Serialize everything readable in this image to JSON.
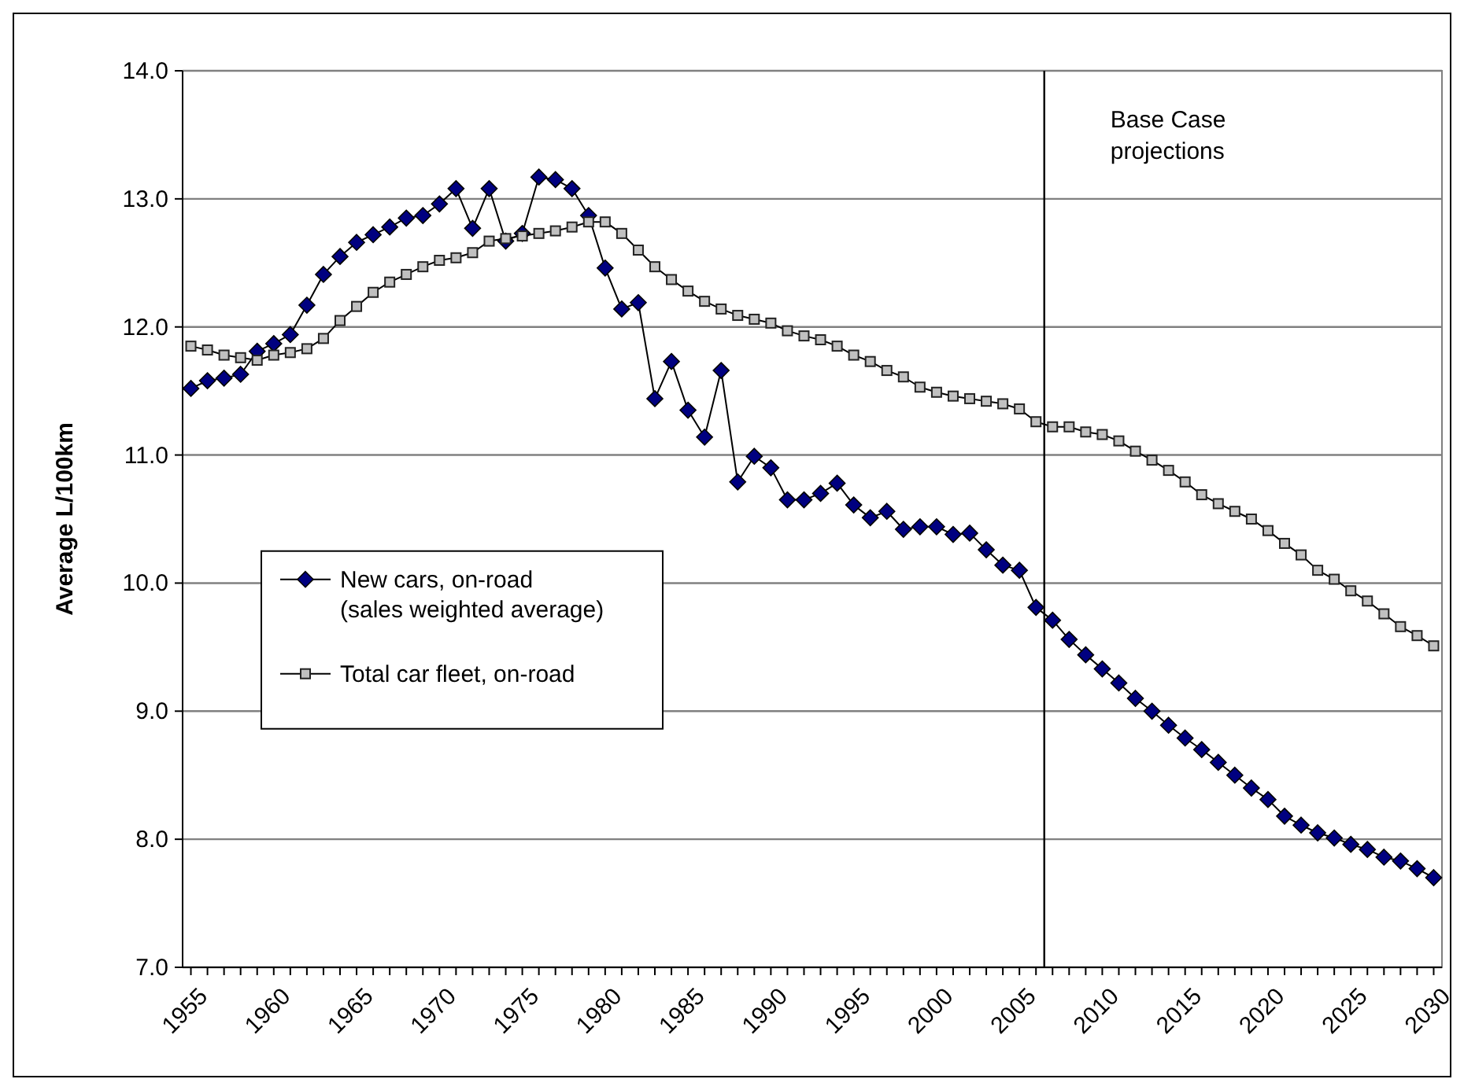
{
  "chart_data": {
    "type": "line",
    "ylabel": "Average L/100km",
    "x": [
      1955,
      1956,
      1957,
      1958,
      1959,
      1960,
      1961,
      1962,
      1963,
      1964,
      1965,
      1966,
      1967,
      1968,
      1969,
      1970,
      1971,
      1972,
      1973,
      1974,
      1975,
      1976,
      1977,
      1978,
      1979,
      1980,
      1981,
      1982,
      1983,
      1984,
      1985,
      1986,
      1987,
      1988,
      1989,
      1990,
      1991,
      1992,
      1993,
      1994,
      1995,
      1996,
      1997,
      1998,
      1999,
      2000,
      2001,
      2002,
      2003,
      2004,
      2005,
      2006,
      2007,
      2008,
      2009,
      2010,
      2011,
      2012,
      2013,
      2014,
      2015,
      2016,
      2017,
      2018,
      2019,
      2020,
      2021,
      2022,
      2023,
      2024,
      2025,
      2026,
      2027,
      2028,
      2029,
      2030
    ],
    "series": [
      {
        "name": "New cars, on-road (sales weighted average)",
        "color": "#000080",
        "marker": "diamond",
        "values": [
          11.52,
          11.58,
          11.6,
          11.63,
          11.81,
          11.87,
          11.94,
          12.17,
          12.41,
          12.55,
          12.66,
          12.72,
          12.78,
          12.85,
          12.87,
          12.96,
          13.08,
          12.77,
          13.08,
          12.67,
          12.73,
          13.17,
          13.15,
          13.08,
          12.87,
          12.46,
          12.14,
          12.19,
          11.44,
          11.73,
          11.35,
          11.14,
          11.66,
          10.79,
          10.99,
          10.9,
          10.65,
          10.65,
          10.7,
          10.78,
          10.61,
          10.51,
          10.56,
          10.42,
          10.44,
          10.44,
          10.38,
          10.39,
          10.26,
          10.14,
          10.1,
          9.81,
          9.71,
          9.56,
          9.44,
          9.33,
          9.22,
          9.1,
          9.0,
          8.89,
          8.79,
          8.7,
          8.6,
          8.5,
          8.4,
          8.31,
          8.18,
          8.11,
          8.05,
          8.01,
          7.96,
          7.92,
          7.86,
          7.83,
          7.77,
          7.7
        ]
      },
      {
        "name": "Total car fleet, on-road",
        "color": "#c0c0c0",
        "marker": "square",
        "values": [
          11.85,
          11.82,
          11.78,
          11.76,
          11.74,
          11.78,
          11.8,
          11.83,
          11.91,
          12.05,
          12.16,
          12.27,
          12.35,
          12.41,
          12.47,
          12.52,
          12.54,
          12.58,
          12.67,
          12.69,
          12.71,
          12.73,
          12.75,
          12.78,
          12.82,
          12.82,
          12.73,
          12.6,
          12.47,
          12.37,
          12.28,
          12.2,
          12.14,
          12.09,
          12.06,
          12.03,
          11.97,
          11.93,
          11.9,
          11.85,
          11.78,
          11.73,
          11.66,
          11.61,
          11.53,
          11.49,
          11.46,
          11.44,
          11.42,
          11.4,
          11.36,
          11.26,
          11.22,
          11.22,
          11.18,
          11.16,
          11.11,
          11.03,
          10.96,
          10.88,
          10.79,
          10.69,
          10.62,
          10.56,
          10.5,
          10.41,
          10.31,
          10.22,
          10.1,
          10.03,
          9.94,
          9.86,
          9.76,
          9.66,
          9.59,
          9.51
        ]
      }
    ],
    "xlim": [
      1954.5,
      2030.5
    ],
    "xticks": [
      1955,
      {
        "value": 1956,
        "label": null
      },
      {
        "value": 1957,
        "label": null
      },
      {
        "value": 1958,
        "label": null
      },
      {
        "value": 1959,
        "label": null
      },
      1960,
      {
        "value": 1961,
        "label": null
      },
      {
        "value": 1962,
        "label": null
      },
      {
        "value": 1963,
        "label": null
      },
      {
        "value": 1964,
        "label": null
      },
      1965,
      {
        "value": 1966,
        "label": null
      },
      {
        "value": 1967,
        "label": null
      },
      {
        "value": 1968,
        "label": null
      },
      {
        "value": 1969,
        "label": null
      },
      1970,
      {
        "value": 1971,
        "label": null
      },
      {
        "value": 1972,
        "label": null
      },
      {
        "value": 1973,
        "label": null
      },
      {
        "value": 1974,
        "label": null
      },
      1975,
      {
        "value": 1976,
        "label": null
      },
      {
        "value": 1977,
        "label": null
      },
      {
        "value": 1978,
        "label": null
      },
      {
        "value": 1979,
        "label": null
      },
      1980,
      {
        "value": 1981,
        "label": null
      },
      {
        "value": 1982,
        "label": null
      },
      {
        "value": 1983,
        "label": null
      },
      {
        "value": 1984,
        "label": null
      },
      1985,
      {
        "value": 1986,
        "label": null
      },
      {
        "value": 1987,
        "label": null
      },
      {
        "value": 1988,
        "label": null
      },
      {
        "value": 1989,
        "label": null
      },
      1990,
      {
        "value": 1991,
        "label": null
      },
      {
        "value": 1992,
        "label": null
      },
      {
        "value": 1993,
        "label": null
      },
      {
        "value": 1994,
        "label": null
      },
      1995,
      {
        "value": 1996,
        "label": null
      },
      {
        "value": 1997,
        "label": null
      },
      {
        "value": 1998,
        "label": null
      },
      {
        "value": 1999,
        "label": null
      },
      2000,
      {
        "value": 2001,
        "label": null
      },
      {
        "value": 2002,
        "label": null
      },
      {
        "value": 2003,
        "label": null
      },
      {
        "value": 2004,
        "label": null
      },
      2005,
      {
        "value": 2006,
        "label": null
      },
      {
        "value": 2007,
        "label": null
      },
      {
        "value": 2008,
        "label": null
      },
      {
        "value": 2009,
        "label": null
      },
      2010,
      {
        "value": 2011,
        "label": null
      },
      {
        "value": 2012,
        "label": null
      },
      {
        "value": 2013,
        "label": null
      },
      {
        "value": 2014,
        "label": null
      },
      2015,
      {
        "value": 2016,
        "label": null
      },
      {
        "value": 2017,
        "label": null
      },
      {
        "value": 2018,
        "label": null
      },
      {
        "value": 2019,
        "label": null
      },
      2020,
      {
        "value": 2021,
        "label": null
      },
      {
        "value": 2022,
        "label": null
      },
      {
        "value": 2023,
        "label": null
      },
      {
        "value": 2024,
        "label": null
      },
      2025,
      {
        "value": 2026,
        "label": null
      },
      {
        "value": 2027,
        "label": null
      },
      {
        "value": 2028,
        "label": null
      },
      {
        "value": 2029,
        "label": null
      },
      2030
    ],
    "ylim": [
      7,
      14
    ],
    "yticks": [
      {
        "value": 7,
        "label": "7.0"
      },
      {
        "value": 8,
        "label": "8.0"
      },
      {
        "value": 9,
        "label": "9.0"
      },
      {
        "value": 10,
        "label": "10.0"
      },
      {
        "value": 11,
        "label": "11.0"
      },
      {
        "value": 12,
        "label": "12.0"
      },
      {
        "value": 13,
        "label": "13.0"
      },
      {
        "value": 14,
        "label": "14.0"
      }
    ],
    "grid": "y",
    "legend": "left",
    "ref_lines": [
      {
        "axis": "x",
        "value": 2006.5,
        "label": "Base Case projections",
        "color": "#000000"
      }
    ],
    "line_style": "solid"
  }
}
